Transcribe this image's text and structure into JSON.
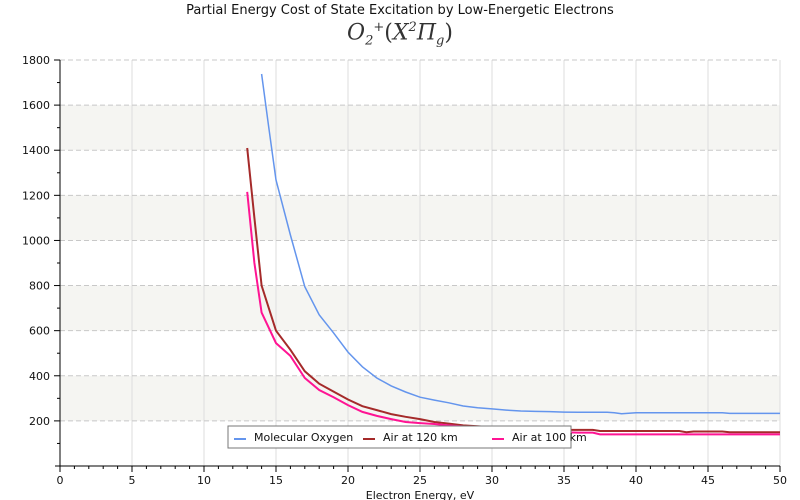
{
  "chart_data": {
    "type": "line",
    "title": "Partial Energy Cost of State Excitation by Low-Energetic Electrons",
    "subtitle": {
      "species": "O",
      "species_sub": "2",
      "species_sup": "+",
      "state": "X",
      "state_sup": "2",
      "term": "Π",
      "term_sub": "g"
    },
    "xlabel": "Electron Energy, eV",
    "ylabel": "",
    "xlim": [
      0,
      50
    ],
    "ylim": [
      0,
      1800
    ],
    "x_ticks": [
      0,
      5,
      10,
      15,
      20,
      25,
      30,
      35,
      40,
      45,
      50
    ],
    "y_ticks": [
      200,
      400,
      600,
      800,
      1000,
      1200,
      1400,
      1600,
      1800
    ],
    "x_minor_step": 1,
    "y_minor_step": 100,
    "grid": true,
    "alternating_bands": true,
    "legend_position": "bottom-center",
    "series": [
      {
        "name": "Molecular Oxygen",
        "color": "#6495ed",
        "x": [
          14,
          14.5,
          15,
          16,
          17,
          18,
          19,
          20,
          21,
          22,
          23,
          24,
          25,
          26,
          27,
          28,
          29,
          30,
          31,
          32,
          33,
          34,
          35,
          36,
          37,
          38,
          38.5,
          39,
          40,
          41,
          42,
          43,
          44,
          45,
          46,
          46.5,
          47,
          48,
          49,
          50
        ],
        "values": [
          1738,
          1500,
          1268,
          1024,
          795,
          670,
          590,
          505,
          440,
          390,
          355,
          328,
          305,
          292,
          280,
          266,
          258,
          253,
          248,
          244,
          242,
          241,
          239,
          238,
          238,
          238,
          236,
          232,
          236,
          236,
          236,
          236,
          236,
          236,
          236,
          233,
          233,
          233,
          233,
          233
        ]
      },
      {
        "name": "Air at 120 km",
        "color": "#a52a2a",
        "x": [
          13,
          13.5,
          14,
          15,
          16,
          17,
          18,
          19,
          20,
          21,
          22,
          23,
          24,
          25,
          26,
          27,
          28,
          29,
          30,
          31,
          32,
          33,
          34,
          35,
          36,
          37,
          37.5,
          38,
          39,
          40,
          41,
          42,
          43,
          43.5,
          44,
          45,
          46,
          46.5,
          47,
          48,
          49,
          50
        ],
        "values": [
          1410,
          1100,
          800,
          600,
          515,
          420,
          365,
          330,
          295,
          265,
          248,
          230,
          218,
          208,
          195,
          188,
          180,
          176,
          172,
          168,
          165,
          162,
          160,
          160,
          160,
          160,
          155,
          155,
          155,
          155,
          155,
          155,
          155,
          150,
          153,
          153,
          153,
          150,
          150,
          150,
          150,
          150
        ]
      },
      {
        "name": "Air at 100 km",
        "color": "#ff1493",
        "x": [
          13,
          13.5,
          14,
          15,
          16,
          17,
          18,
          19,
          20,
          21,
          22,
          23,
          24,
          25,
          26,
          27,
          28,
          29,
          30,
          31,
          32,
          33,
          34,
          35,
          36,
          37,
          37.5,
          38,
          39,
          40,
          41,
          42,
          43,
          44,
          45,
          46,
          47,
          48,
          49,
          50
        ],
        "values": [
          1215,
          900,
          680,
          545,
          488,
          390,
          337,
          305,
          270,
          240,
          222,
          208,
          195,
          190,
          186,
          180,
          175,
          170,
          166,
          162,
          158,
          155,
          152,
          150,
          148,
          148,
          140,
          140,
          140,
          140,
          140,
          140,
          140,
          140,
          140,
          140,
          140,
          140,
          140,
          140
        ]
      }
    ]
  }
}
